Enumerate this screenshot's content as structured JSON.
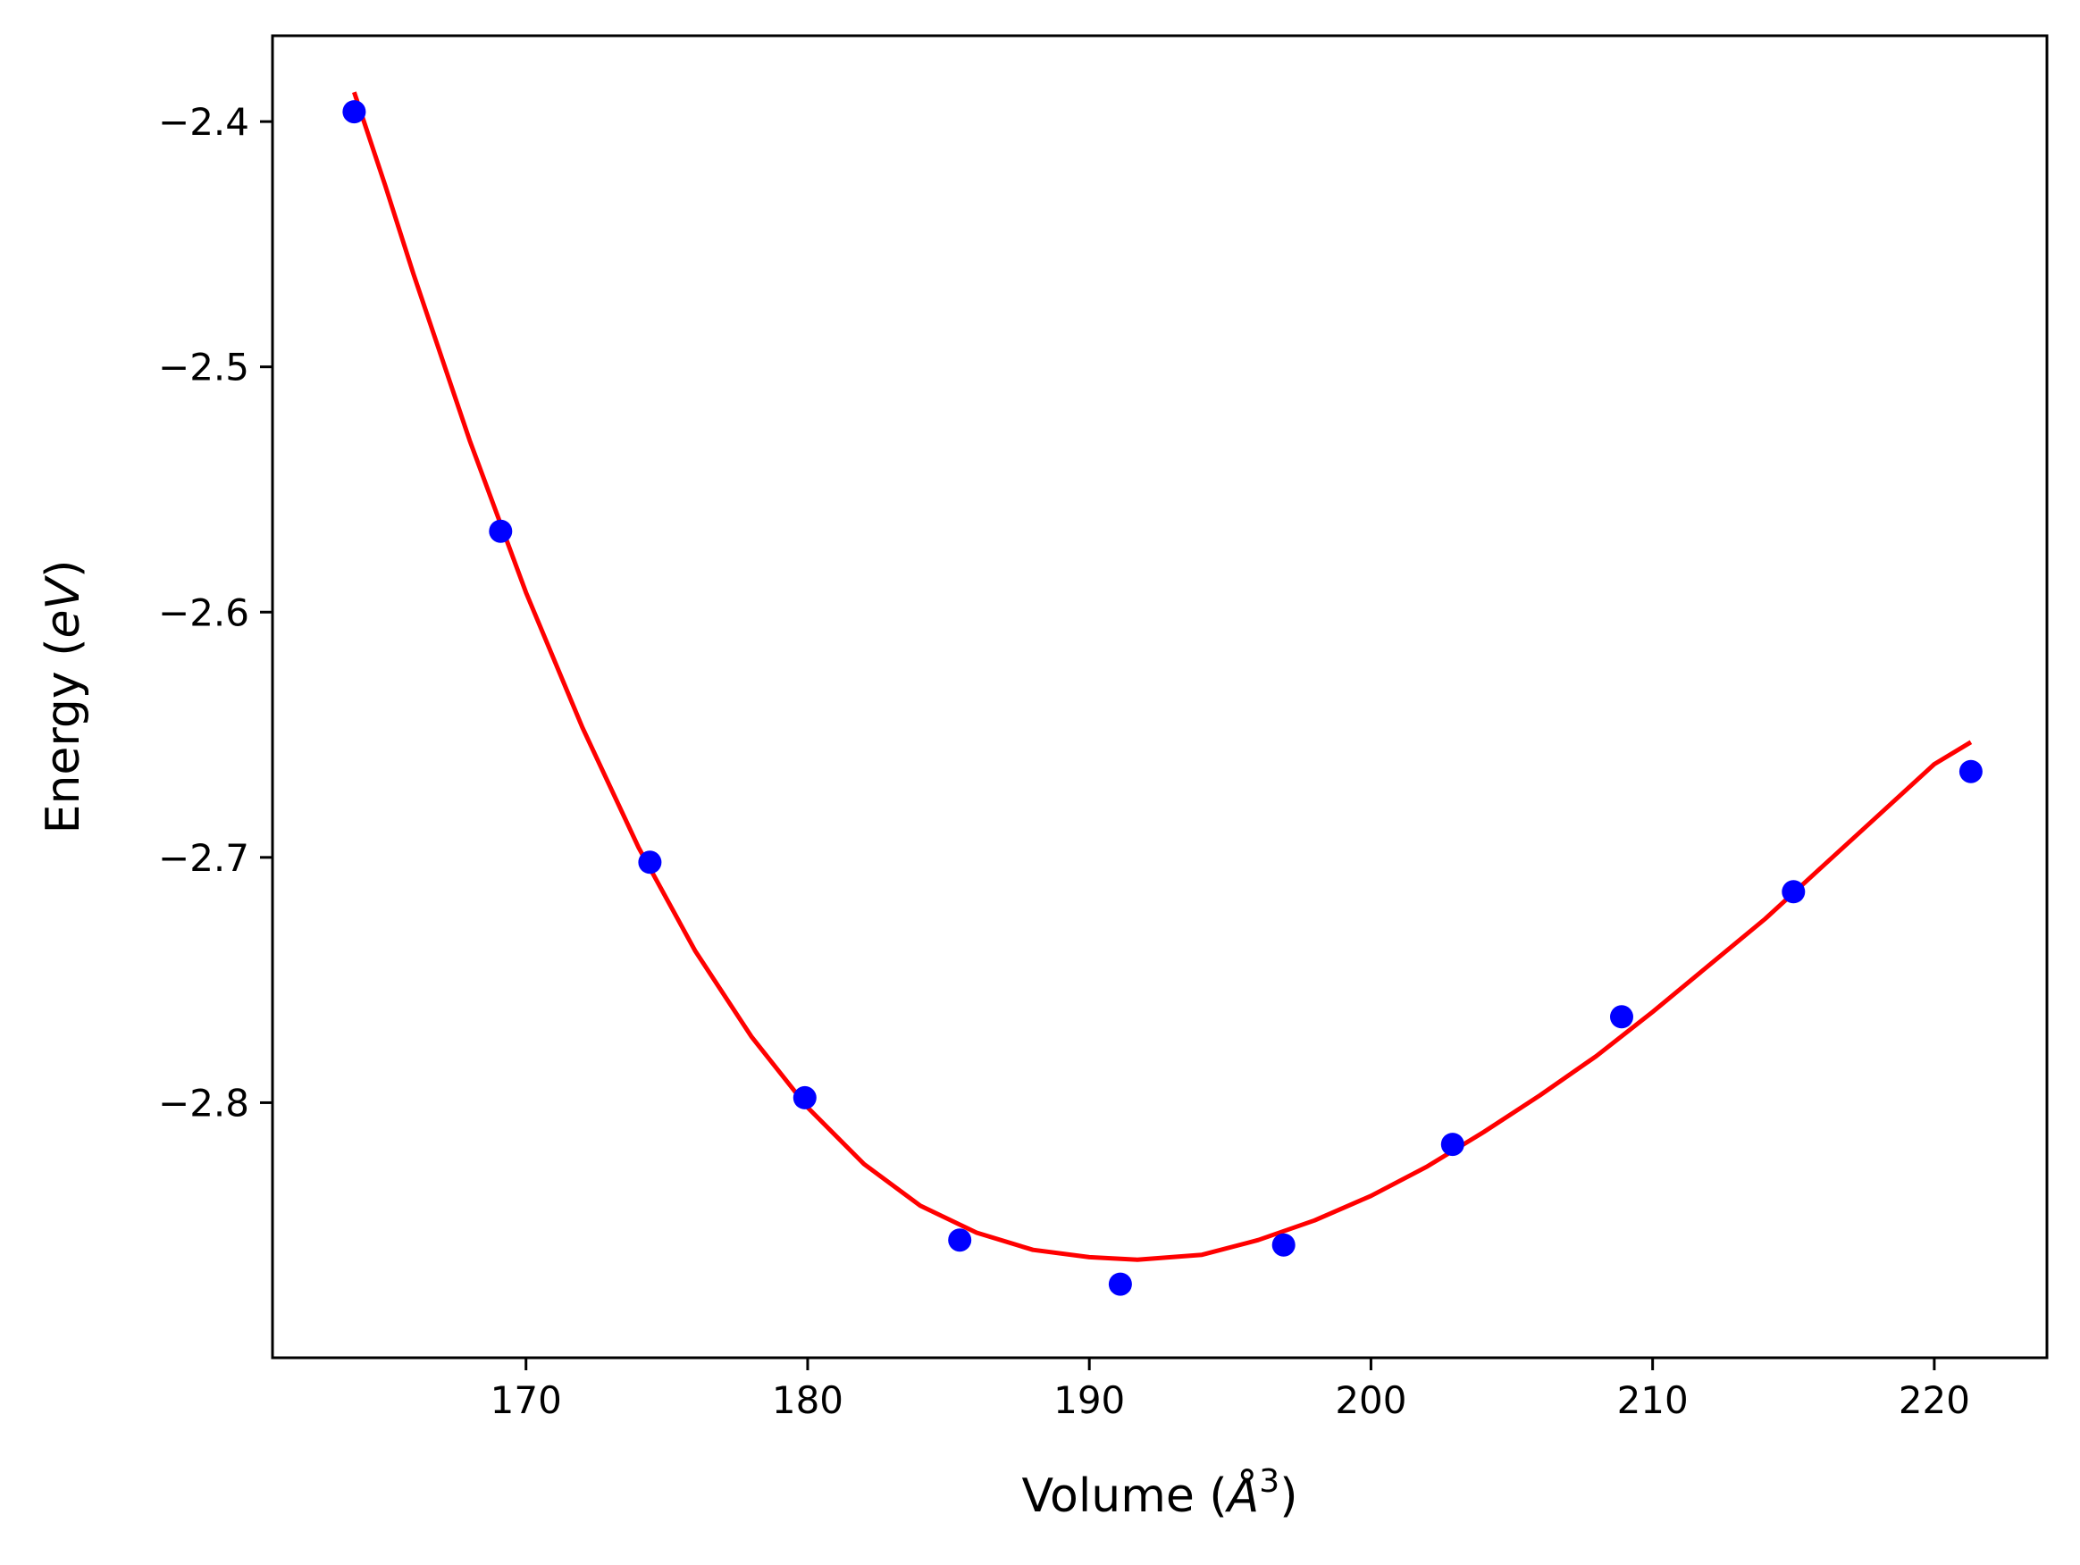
{
  "chart_data": {
    "type": "scatter",
    "title": "",
    "xlabel": "Volume",
    "xlabel_unit_open": " (",
    "xlabel_unit_symbol": "Å",
    "xlabel_unit_power": "3",
    "xlabel_unit_close": ")",
    "ylabel": "Energy",
    "ylabel_unit_open": " (",
    "ylabel_unit": "eV",
    "ylabel_unit_close": ")",
    "xlim": [
      161,
      224
    ],
    "ylim": [
      -2.904,
      -2.365
    ],
    "xticks": [
      170,
      180,
      190,
      200,
      210,
      220
    ],
    "xtick_labels": [
      "170",
      "180",
      "190",
      "200",
      "210",
      "220"
    ],
    "yticks": [
      -2.4,
      -2.5,
      -2.6,
      -2.7,
      -2.8
    ],
    "ytick_labels": [
      "−2.4",
      "−2.5",
      "−2.6",
      "−2.7",
      "−2.8"
    ],
    "grid": false,
    "legend": "none",
    "series": [
      {
        "kind": "points",
        "color": "#0000ff",
        "x": [
          163.9,
          169.1,
          174.4,
          179.9,
          185.4,
          191.1,
          196.9,
          202.9,
          208.9,
          215.0,
          221.3
        ],
        "y": [
          -2.396,
          -2.567,
          -2.702,
          -2.798,
          -2.856,
          -2.874,
          -2.858,
          -2.817,
          -2.765,
          -2.714,
          -2.665
        ]
      },
      {
        "kind": "fit-curve",
        "color": "#ff0000",
        "x": [
          163.9,
          165.0,
          166.0,
          168.0,
          170.0,
          172.0,
          174.0,
          176.0,
          178.0,
          180.0,
          182.0,
          184.0,
          186.0,
          188.0,
          190.0,
          191.7,
          194.0,
          196.0,
          198.0,
          200.0,
          202.0,
          204.0,
          206.0,
          208.0,
          210.0,
          212.0,
          214.0,
          216.0,
          218.0,
          220.0,
          221.3
        ],
        "y": [
          -2.388,
          -2.426,
          -2.462,
          -2.53,
          -2.592,
          -2.647,
          -2.696,
          -2.738,
          -2.773,
          -2.802,
          -2.825,
          -2.842,
          -2.853,
          -2.86,
          -2.863,
          -2.864,
          -2.862,
          -2.856,
          -2.848,
          -2.838,
          -2.826,
          -2.812,
          -2.797,
          -2.781,
          -2.763,
          -2.744,
          -2.725,
          -2.704,
          -2.683,
          -2.662,
          -2.653
        ]
      }
    ]
  }
}
